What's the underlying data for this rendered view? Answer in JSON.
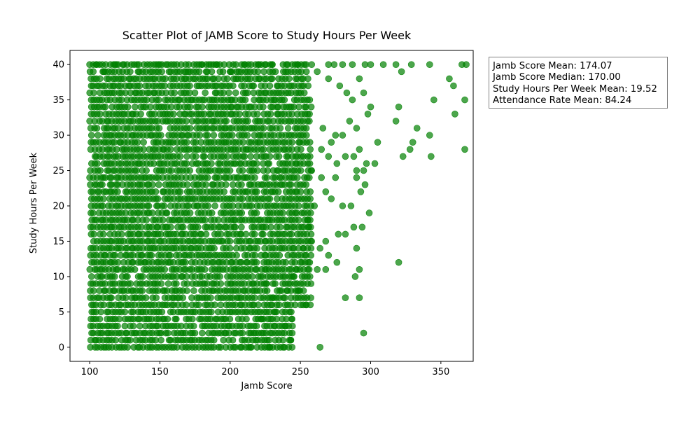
{
  "chart_data": {
    "type": "scatter",
    "title": "Scatter Plot of JAMB Score to Study Hours Per Week",
    "xlabel": "Jamb Score",
    "ylabel": "Study Hours Per Week",
    "xlim": [
      86,
      373
    ],
    "ylim": [
      -2,
      42
    ],
    "xticks": [
      100,
      150,
      200,
      250,
      300,
      350
    ],
    "yticks": [
      0,
      5,
      10,
      15,
      20,
      25,
      30,
      35,
      40
    ],
    "grid": false,
    "marker_color": "#008000",
    "marker_alpha": 0.7,
    "points_dense_sample": true,
    "points": [
      [
        105,
        40
      ],
      [
        110,
        39
      ],
      [
        118,
        40
      ],
      [
        135,
        40
      ],
      [
        140,
        39
      ],
      [
        150,
        40
      ],
      [
        160,
        40
      ],
      [
        170,
        39
      ],
      [
        180,
        40
      ],
      [
        190,
        40
      ],
      [
        200,
        39
      ],
      [
        210,
        40
      ],
      [
        220,
        40
      ],
      [
        230,
        40
      ],
      [
        240,
        40
      ],
      [
        248,
        40
      ],
      [
        258,
        40
      ],
      [
        262,
        39
      ],
      [
        270,
        40
      ],
      [
        274,
        40
      ],
      [
        280,
        40
      ],
      [
        287,
        40
      ],
      [
        296,
        40
      ],
      [
        300,
        40
      ],
      [
        309,
        40
      ],
      [
        318,
        40
      ],
      [
        322,
        39
      ],
      [
        329,
        40
      ],
      [
        342,
        40
      ],
      [
        356,
        38
      ],
      [
        359,
        37
      ],
      [
        365,
        40
      ],
      [
        368,
        40
      ],
      [
        270,
        38
      ],
      [
        278,
        37
      ],
      [
        283,
        36
      ],
      [
        287,
        35
      ],
      [
        292,
        38
      ],
      [
        295,
        36
      ],
      [
        298,
        33
      ],
      [
        300,
        34
      ],
      [
        285,
        32
      ],
      [
        290,
        31
      ],
      [
        275,
        30
      ],
      [
        266,
        31
      ],
      [
        272,
        29
      ],
      [
        280,
        30
      ],
      [
        265,
        28
      ],
      [
        270,
        27
      ],
      [
        276,
        26
      ],
      [
        282,
        27
      ],
      [
        288,
        27
      ],
      [
        292,
        28
      ],
      [
        297,
        26
      ],
      [
        305,
        29
      ],
      [
        303,
        26
      ],
      [
        320,
        34
      ],
      [
        318,
        32
      ],
      [
        333,
        31
      ],
      [
        330,
        29
      ],
      [
        328,
        28
      ],
      [
        342,
        30
      ],
      [
        323,
        27
      ],
      [
        343,
        27
      ],
      [
        345,
        35
      ],
      [
        360,
        33
      ],
      [
        367,
        35
      ],
      [
        367,
        28
      ],
      [
        265,
        24
      ],
      [
        268,
        22
      ],
      [
        272,
        21
      ],
      [
        275,
        24
      ],
      [
        280,
        20
      ],
      [
        286,
        20
      ],
      [
        290,
        24
      ],
      [
        293,
        22
      ],
      [
        296,
        23
      ],
      [
        299,
        19
      ],
      [
        290,
        25
      ],
      [
        295,
        25
      ],
      [
        288,
        17
      ],
      [
        282,
        16
      ],
      [
        277,
        16
      ],
      [
        268,
        15
      ],
      [
        264,
        14
      ],
      [
        270,
        13
      ],
      [
        276,
        12
      ],
      [
        262,
        11
      ],
      [
        268,
        11
      ],
      [
        290,
        14
      ],
      [
        292,
        11
      ],
      [
        289,
        10
      ],
      [
        294,
        17
      ],
      [
        320,
        12
      ],
      [
        282,
        7
      ],
      [
        292,
        7
      ],
      [
        295,
        2
      ],
      [
        264,
        0
      ],
      [
        243,
        1
      ],
      [
        244,
        4
      ],
      [
        239,
        3
      ],
      [
        232,
        5
      ],
      [
        230,
        7
      ],
      [
        226,
        9
      ],
      [
        215,
        0
      ],
      [
        213,
        1
      ],
      [
        218,
        2
      ],
      [
        228,
        0
      ],
      [
        222,
        4
      ],
      [
        245,
        10
      ],
      [
        250,
        12
      ],
      [
        254,
        6
      ],
      [
        248,
        8
      ],
      [
        252,
        14
      ],
      [
        255,
        18
      ],
      [
        257,
        22
      ],
      [
        258,
        25
      ],
      [
        260,
        20
      ],
      [
        256,
        17
      ],
      [
        258,
        15
      ]
    ],
    "clusters": [
      {
        "x": [
          100,
          260
        ],
        "y": [
          0,
          40
        ],
        "density": 0.88
      }
    ],
    "annotation": {
      "lines": [
        "Jamb Score Mean: 174.07",
        "Jamb Score Median: 170.00",
        "Study Hours Per Week Mean: 19.52",
        "Attendance Rate Mean: 84.24"
      ]
    }
  }
}
